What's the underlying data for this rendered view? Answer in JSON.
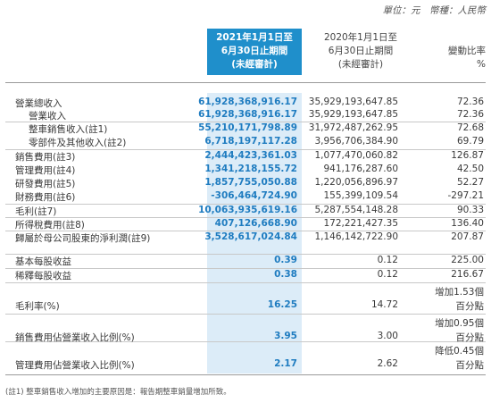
{
  "unit_note": "單位：元　幣種：人民幣",
  "headers": {
    "col1": [
      "2021年1月1日至",
      "6月30日止期間",
      "(未經審計)"
    ],
    "col2": [
      "2020年1月1日至",
      "6月30日止期間",
      "(未經審計)"
    ],
    "col3": [
      "變動比率",
      "%"
    ]
  },
  "rows": [
    {
      "label": "營業總收入",
      "v1": "61,928,368,916.17",
      "v2": "35,929,193,647.85",
      "v3": "72.36"
    },
    {
      "label": "營業收入",
      "v1": "61,928,368,916.17",
      "v2": "35,929,193,647.85",
      "v3": "72.36"
    },
    {
      "label": "整車銷售收入(註1)",
      "v1": "55,210,171,798.89",
      "v2": "31,972,487,262.95",
      "v3": "72.68"
    },
    {
      "label": "零部件及其他收入(註2)",
      "v1": "6,718,197,117.28",
      "v2": "3,956,706,384.90",
      "v3": "69.79"
    },
    {
      "label": "銷售費用(註3)",
      "v1": "2,444,423,361.03",
      "v2": "1,077,470,060.82",
      "v3": "126.87"
    },
    {
      "label": "管理費用(註4)",
      "v1": "1,341,218,155.72",
      "v2": "941,176,287.60",
      "v3": "42.50"
    },
    {
      "label": "研發費用(註5)",
      "v1": "1,857,755,050.88",
      "v2": "1,220,056,896.97",
      "v3": "52.27"
    },
    {
      "label": "財務費用(註6)",
      "v1": "-306,464,724.90",
      "v2": "155,399,109.54",
      "v3": "-297.21"
    },
    {
      "label": "毛利(註7)",
      "v1": "10,063,935,619.16",
      "v2": "5,287,554,148.28",
      "v3": "90.33"
    },
    {
      "label": "所得稅費用(註8)",
      "v1": "407,126,668.90",
      "v2": "172,221,427.35",
      "v3": "136.40"
    },
    {
      "label": "歸屬於母公司股東的淨利潤(註9)",
      "v1": "3,528,617,024.84",
      "v2": "1,146,142,722.90",
      "v3": "207.87"
    },
    {
      "label": "基本每股收益",
      "v1": "0.39",
      "v2": "0.12",
      "v3": "225.00"
    },
    {
      "label": "稀釋每股收益",
      "v1": "0.38",
      "v2": "0.12",
      "v3": "216.67"
    },
    {
      "label": "毛利率(%)",
      "v1": "16.25",
      "v2": "14.72",
      "v3_top": "增加1.53個",
      "v3": "百分點"
    },
    {
      "label": "銷售費用佔營業收入比例(%)",
      "v1": "3.95",
      "v2": "3.00",
      "v3_top": "增加0.95個",
      "v3": "百分點"
    },
    {
      "label": "管理費用佔營業收入比例(%)",
      "v1": "2.17",
      "v2": "2.62",
      "v3_top": "降低0.45個",
      "v3": "百分點"
    }
  ],
  "footnote": "(註1)  整車銷售收入增加的主要原因是：報告期整車銷量增加所致。"
}
